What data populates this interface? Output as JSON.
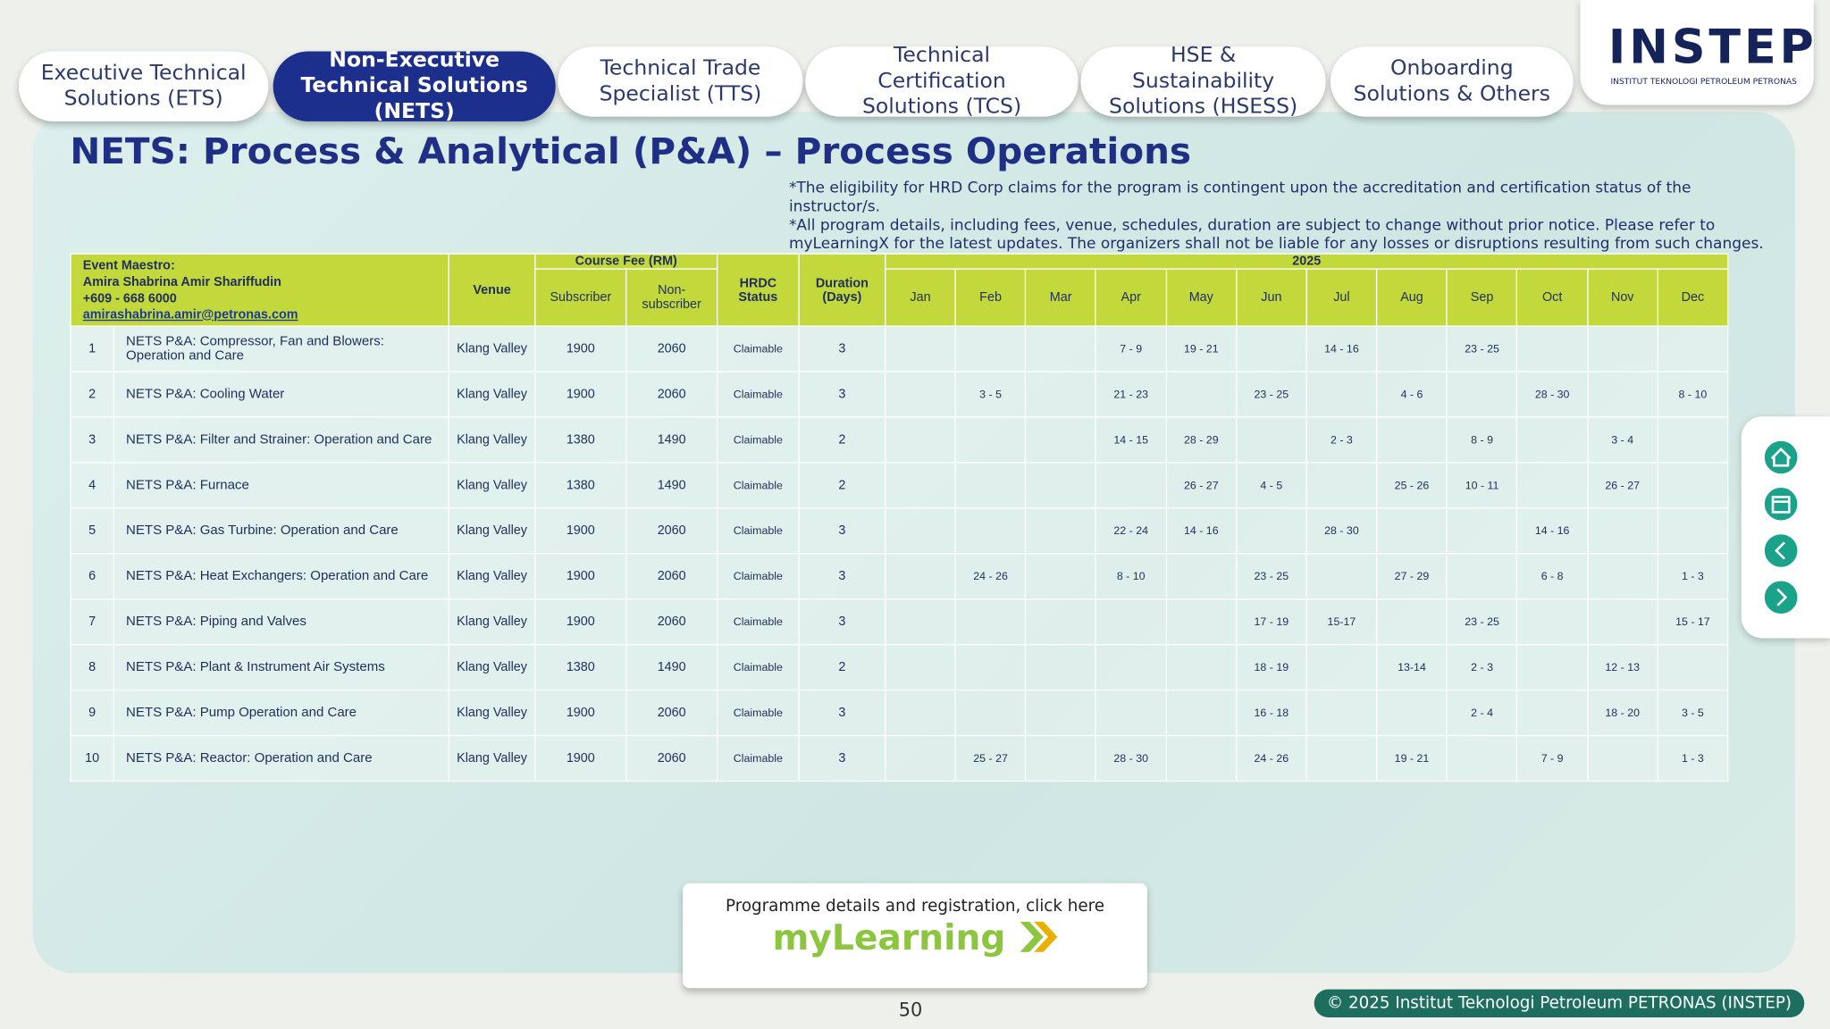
{
  "tabs": [
    "Executive Technical Solutions (ETS)",
    "Non-Executive Technical Solutions (NETS)",
    "Technical Trade Specialist (TTS)",
    "Technical Certification Solutions (TCS)",
    "HSE & Sustainability Solutions (HSESS)",
    "Onboarding Solutions & Others"
  ],
  "logo": {
    "name": "INSTEP",
    "subtitle": "INSTITUT TEKNOLOGI PETROLEUM PETRONAS"
  },
  "title": "NETS: Process & Analytical (P&A) – Process Operations",
  "notes": [
    "*The eligibility for HRD Corp claims for the program is contingent upon the accreditation and certification status of the instructor/s.",
    "*All program details, including fees, venue, schedules, duration are subject to change without prior notice. Please refer to myLearningX for the latest updates. The organizers shall not be liable for any losses or disruptions resulting from such changes."
  ],
  "table": {
    "maestro": {
      "label": "Event Maestro:",
      "name": "Amira Shabrina Amir Shariffudin",
      "phone": "+609 - 668 6000",
      "email": "amirashabrina.amir@petronas.com"
    },
    "headers": {
      "venue": "Venue",
      "fee": "Course Fee (RM)",
      "subscriber": "Subscriber",
      "non_subscriber": "Non-subscriber",
      "status": "HRDC Status",
      "duration": "Duration (Days)",
      "year": "2025"
    },
    "months": [
      "Jan",
      "Feb",
      "Mar",
      "Apr",
      "May",
      "Jun",
      "Jul",
      "Aug",
      "Sep",
      "Oct",
      "Nov",
      "Dec"
    ],
    "rows": [
      [
        1,
        "NETS P&A: Compressor, Fan and Blowers: Operation and Care",
        "Klang Valley",
        1900,
        2060,
        "Claimable",
        3,
        null,
        null,
        null,
        "7 - 9",
        "19 - 21",
        null,
        "14 - 16",
        null,
        "23 - 25",
        null,
        null,
        null
      ],
      [
        2,
        "NETS P&A: Cooling Water",
        "Klang Valley",
        1900,
        2060,
        "Claimable",
        3,
        null,
        "3 - 5",
        null,
        "21 - 23",
        null,
        "23 - 25",
        null,
        "4 - 6",
        null,
        "28 - 30",
        null,
        "8 - 10"
      ],
      [
        3,
        "NETS P&A: Filter and Strainer: Operation and Care",
        "Klang Valley",
        1380,
        1490,
        "Claimable",
        2,
        null,
        null,
        null,
        "14 - 15",
        "28 - 29",
        null,
        "2 - 3",
        null,
        "8 - 9",
        null,
        "3 - 4",
        null
      ],
      [
        4,
        "NETS P&A: Furnace",
        "Klang Valley",
        1380,
        1490,
        "Claimable",
        2,
        null,
        null,
        null,
        null,
        "26 - 27",
        "4 - 5",
        null,
        "25 - 26",
        "10 - 11",
        null,
        "26 - 27",
        null
      ],
      [
        5,
        "NETS P&A: Gas Turbine: Operation and Care",
        "Klang Valley",
        1900,
        2060,
        "Claimable",
        3,
        null,
        null,
        null,
        "22 - 24",
        "14 - 16",
        null,
        "28 - 30",
        null,
        null,
        "14 - 16",
        null,
        null
      ],
      [
        6,
        "NETS P&A: Heat Exchangers: Operation and Care",
        "Klang Valley",
        1900,
        2060,
        "Claimable",
        3,
        null,
        "24 - 26",
        null,
        "8 - 10",
        null,
        "23 - 25",
        null,
        "27 - 29",
        null,
        "6 - 8",
        null,
        "1 - 3"
      ],
      [
        7,
        "NETS P&A: Piping and Valves",
        "Klang Valley",
        1900,
        2060,
        "Claimable",
        3,
        null,
        null,
        null,
        null,
        null,
        "17 - 19",
        "15-17",
        null,
        "23 - 25",
        null,
        null,
        "15 - 17"
      ],
      [
        8,
        "NETS P&A: Plant & Instrument Air Systems",
        "Klang Valley",
        1380,
        1490,
        "Claimable",
        2,
        null,
        null,
        null,
        null,
        null,
        "18 - 19",
        null,
        "13-14",
        "2 - 3",
        null,
        "12 - 13",
        null
      ],
      [
        9,
        "NETS P&A: Pump Operation and Care",
        "Klang Valley",
        1900,
        2060,
        "Claimable",
        3,
        null,
        null,
        null,
        null,
        null,
        "16 - 18",
        null,
        null,
        "2 - 4",
        null,
        "18 - 20",
        "3 - 5"
      ],
      [
        10,
        "NETS P&A: Reactor: Operation and Care",
        "Klang Valley",
        1900,
        2060,
        "Claimable",
        3,
        null,
        "25 - 27",
        null,
        "28 - 30",
        null,
        "24 - 26",
        null,
        "19 - 21",
        null,
        "7 - 9",
        null,
        "1 - 3"
      ]
    ]
  },
  "footer": {
    "cta": "Programme details and registration, click here",
    "brand": "myLearning",
    "page": 50,
    "copyright": "© 2025 Institut Teknologi Petroleum PETRONAS (INSTEP)"
  }
}
